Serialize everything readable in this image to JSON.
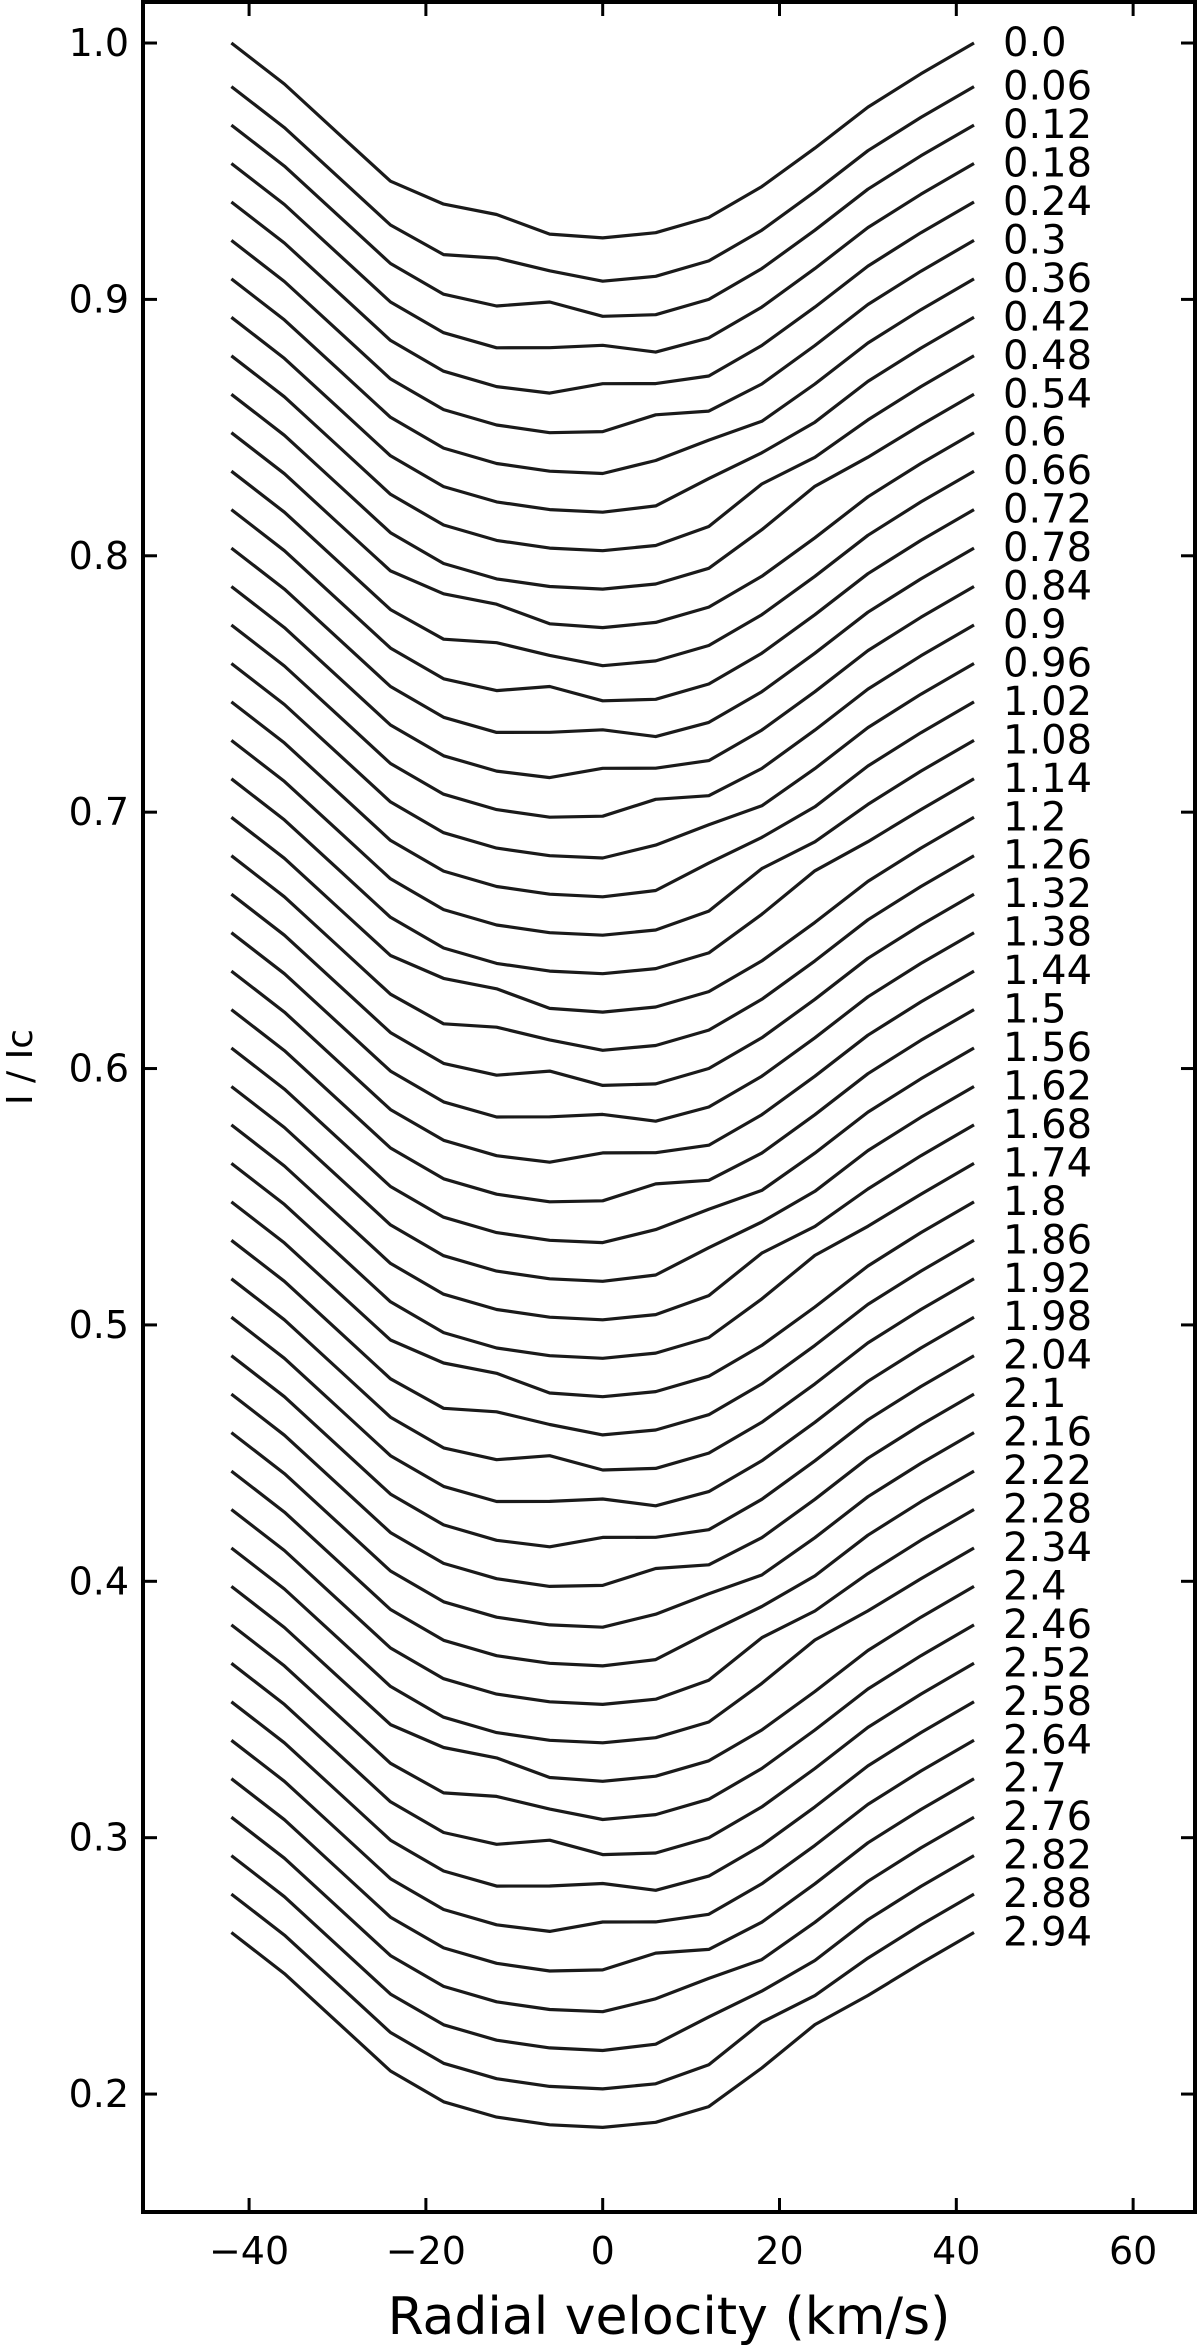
{
  "chart_data": {
    "type": "line",
    "title": "",
    "xlabel": "Radial velocity (km/s)",
    "ylabel": "I / Ic",
    "xlim": [
      -52,
      67
    ],
    "ylim": [
      0.154,
      1.016
    ],
    "xticks": [
      -40,
      -20,
      0,
      20,
      40,
      60
    ],
    "xtick_labels": [
      "−40",
      "−20",
      "0",
      "20",
      "40",
      "60"
    ],
    "yticks": [
      0.2,
      0.3,
      0.4,
      0.5,
      0.6,
      0.7,
      0.8,
      0.9,
      1.0
    ],
    "ytick_labels": [
      "0.2",
      "0.3",
      "0.4",
      "0.5",
      "0.6",
      "0.7",
      "0.8",
      "0.9",
      "1.0"
    ],
    "grid": false,
    "x": [
      -42,
      -36,
      -30,
      -24,
      -18,
      -12,
      -6,
      0,
      6,
      12,
      18,
      24,
      30,
      36,
      42
    ],
    "profile_shape": [
      0.0,
      -0.016,
      -0.035,
      -0.054,
      -0.066,
      -0.072,
      -0.075,
      -0.076,
      -0.074,
      -0.068,
      -0.056,
      -0.041,
      -0.025,
      -0.012,
      0.0
    ],
    "continuum_offsets": [
      1.0,
      0.983,
      0.968,
      0.953,
      0.938,
      0.923,
      0.908,
      0.893,
      0.878,
      0.863,
      0.848,
      0.833,
      0.818,
      0.803,
      0.788,
      0.773,
      0.758,
      0.743,
      0.728,
      0.713,
      0.698,
      0.683,
      0.668,
      0.653,
      0.638,
      0.623,
      0.608,
      0.593,
      0.578,
      0.563,
      0.548,
      0.533,
      0.518,
      0.503,
      0.488,
      0.473,
      0.458,
      0.443,
      0.428,
      0.413,
      0.398,
      0.383,
      0.368,
      0.353,
      0.338,
      0.323,
      0.308,
      0.293,
      0.278,
      0.263
    ],
    "bump_velocities": [
      -14,
      -10,
      -6,
      -2,
      2,
      6,
      10,
      14,
      18,
      22
    ],
    "series": [
      {
        "name": "0.0"
      },
      {
        "name": "0.06"
      },
      {
        "name": "0.12"
      },
      {
        "name": "0.18"
      },
      {
        "name": "0.24"
      },
      {
        "name": "0.3"
      },
      {
        "name": "0.36"
      },
      {
        "name": "0.42"
      },
      {
        "name": "0.48"
      },
      {
        "name": "0.54"
      },
      {
        "name": "0.6"
      },
      {
        "name": "0.66"
      },
      {
        "name": "0.72"
      },
      {
        "name": "0.78"
      },
      {
        "name": "0.84"
      },
      {
        "name": "0.9"
      },
      {
        "name": "0.96"
      },
      {
        "name": "1.02"
      },
      {
        "name": "1.08"
      },
      {
        "name": "1.14"
      },
      {
        "name": "1.2"
      },
      {
        "name": "1.26"
      },
      {
        "name": "1.32"
      },
      {
        "name": "1.38"
      },
      {
        "name": "1.44"
      },
      {
        "name": "1.5"
      },
      {
        "name": "1.56"
      },
      {
        "name": "1.62"
      },
      {
        "name": "1.68"
      },
      {
        "name": "1.74"
      },
      {
        "name": "1.8"
      },
      {
        "name": "1.86"
      },
      {
        "name": "1.92"
      },
      {
        "name": "1.98"
      },
      {
        "name": "2.04"
      },
      {
        "name": "2.1"
      },
      {
        "name": "2.16"
      },
      {
        "name": "2.22"
      },
      {
        "name": "2.28"
      },
      {
        "name": "2.34"
      },
      {
        "name": "2.4"
      },
      {
        "name": "2.46"
      },
      {
        "name": "2.52"
      },
      {
        "name": "2.58"
      },
      {
        "name": "2.64"
      },
      {
        "name": "2.7"
      },
      {
        "name": "2.76"
      },
      {
        "name": "2.82"
      },
      {
        "name": "2.88"
      },
      {
        "name": "2.94"
      }
    ]
  }
}
